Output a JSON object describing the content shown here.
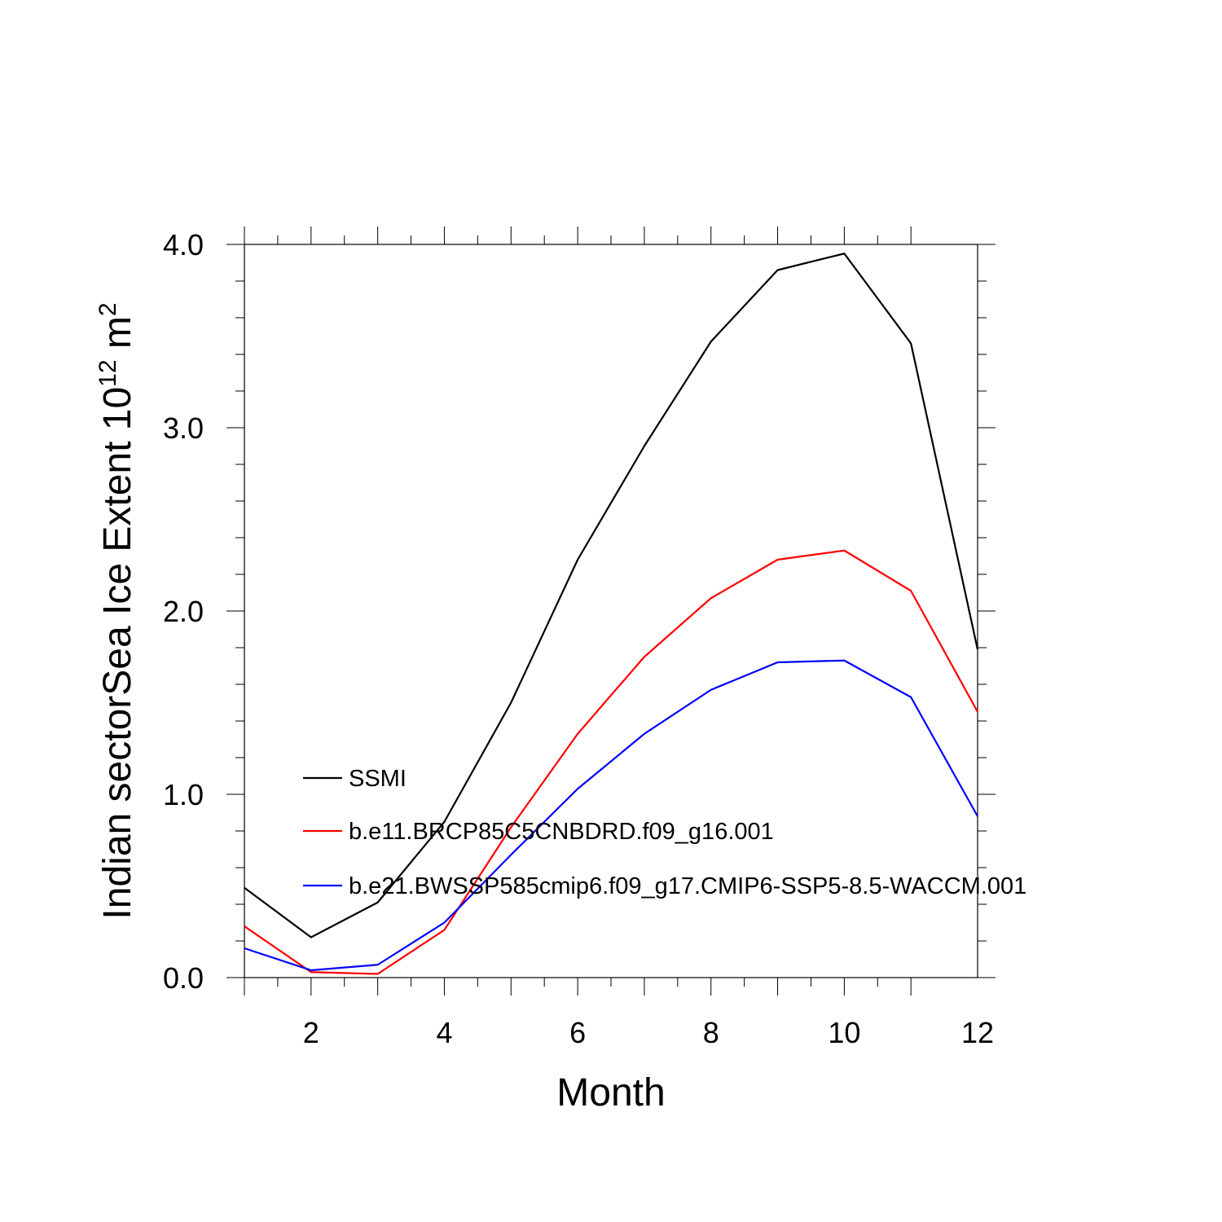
{
  "chart_data": {
    "type": "line",
    "title": "",
    "xlabel": "Month",
    "ylabel": {
      "prefix": "Indian sectorSea Ice Extent 10",
      "exponent": "12",
      "unit": " m",
      "unit_exponent": "2"
    },
    "xlim": [
      1,
      12
    ],
    "ylim": [
      0,
      4
    ],
    "x_ticks": [
      2,
      4,
      6,
      8,
      10,
      12
    ],
    "y_ticks": [
      0,
      1,
      2,
      3,
      4
    ],
    "y_tick_labels": [
      "0.0",
      "1.0",
      "2.0",
      "3.0",
      "4.0"
    ],
    "grid": false,
    "legend_position": "center-left",
    "x": [
      1,
      2,
      3,
      4,
      5,
      6,
      7,
      8,
      9,
      10,
      11,
      12
    ],
    "series": [
      {
        "name": "SSMI",
        "color": "#000000",
        "values": [
          0.49,
          0.22,
          0.41,
          0.85,
          1.5,
          2.28,
          2.9,
          3.47,
          3.86,
          3.95,
          3.46,
          1.79
        ]
      },
      {
        "name": "b.e11.BRCP85C5CNBDRD.f09_g16.001",
        "color": "#ff0000",
        "values": [
          0.28,
          0.03,
          0.02,
          0.26,
          0.82,
          1.33,
          1.75,
          2.07,
          2.28,
          2.33,
          2.11,
          1.45
        ]
      },
      {
        "name": "b.e21.BWSSP585cmip6.f09_g17.CMIP6-SSP5-8.5-WACCM.001",
        "color": "#0000ff",
        "values": [
          0.16,
          0.04,
          0.07,
          0.3,
          0.67,
          1.03,
          1.33,
          1.57,
          1.72,
          1.73,
          1.53,
          0.88
        ]
      }
    ]
  }
}
